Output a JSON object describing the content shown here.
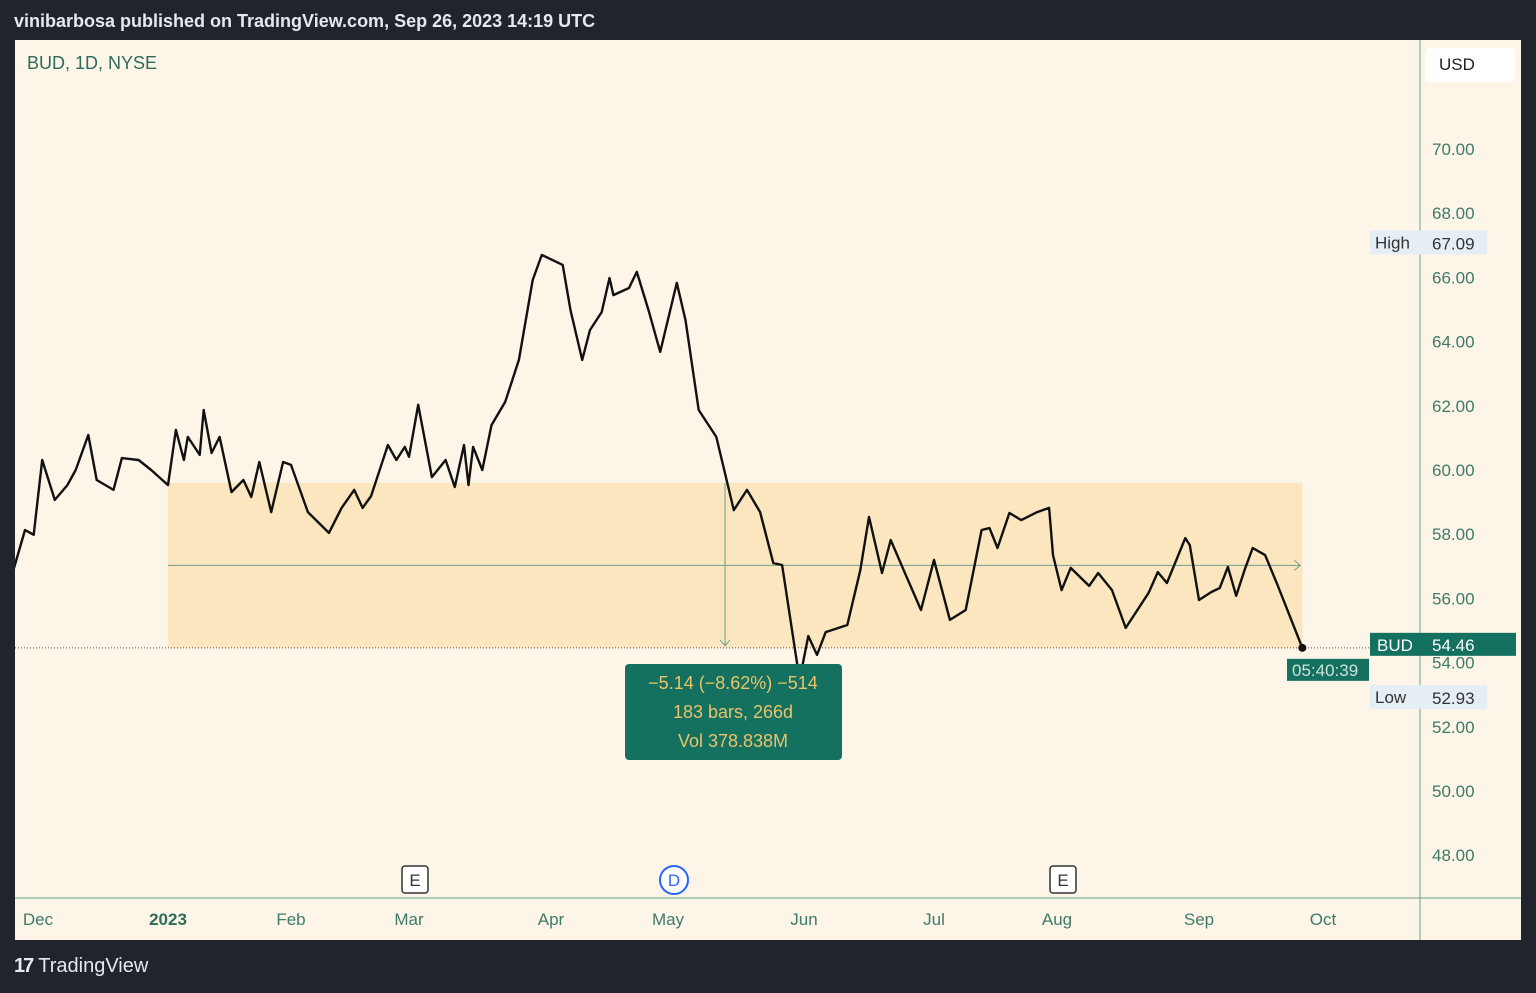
{
  "header": {
    "title": "vinibarbosa published on TradingView.com, Sep 26, 2023 14:19 UTC"
  },
  "footer": {
    "brand": "TradingView",
    "logo_icon": "tradingview-logo"
  },
  "symbol_label": "BUD, 1D, NYSE",
  "currency": "USD",
  "colors": {
    "background": "#fdf5e8",
    "line": "#111111",
    "accent": "#14705f",
    "range_fill": "#fbe6c0",
    "label_text": "#e9c46a"
  },
  "markers": [
    {
      "label": "E",
      "month": "Mar",
      "type": "earnings"
    },
    {
      "label": "D",
      "month": "May",
      "type": "dividend"
    },
    {
      "label": "E",
      "month": "Aug",
      "type": "earnings"
    }
  ],
  "price_labels": {
    "high": {
      "label": "High",
      "value": "67.09"
    },
    "current": {
      "label": "BUD",
      "value": "54.46",
      "countdown": "05:40:39"
    },
    "low": {
      "label": "Low",
      "value": "52.93"
    }
  },
  "measure": {
    "line1": "−5.14 (−8.62%) −514",
    "line2": "183 bars, 266d",
    "line3": "Vol 378.838M",
    "start_date": "2023-01-01",
    "end_date": "2023-09-26",
    "top_price": 59.6,
    "bottom_price": 54.46
  },
  "chart_data": {
    "type": "line",
    "title": "BUD, 1D, NYSE",
    "xlabel": "",
    "ylabel": "",
    "ylim": [
      46.5,
      72.5
    ],
    "y_ticks": [
      "48.00",
      "50.00",
      "52.00",
      "54.00",
      "56.00",
      "58.00",
      "60.00",
      "62.00",
      "64.00",
      "66.00",
      "68.00",
      "70.00"
    ],
    "x_ticks": [
      {
        "label": "Dec",
        "date": "2022-12-01"
      },
      {
        "label": "2023",
        "date": "2023-01-01",
        "bold": true
      },
      {
        "label": "Feb",
        "date": "2023-02-01"
      },
      {
        "label": "Mar",
        "date": "2023-03-01"
      },
      {
        "label": "Apr",
        "date": "2023-04-01"
      },
      {
        "label": "May",
        "date": "2023-05-01"
      },
      {
        "label": "Jun",
        "date": "2023-06-01"
      },
      {
        "label": "Jul",
        "date": "2023-07-01"
      },
      {
        "label": "Aug",
        "date": "2023-08-01"
      },
      {
        "label": "Sep",
        "date": "2023-09-01"
      },
      {
        "label": "Oct",
        "date": "2023-10-01"
      }
    ],
    "grid": false,
    "series": [
      {
        "points": [
          [
            "2022-11-25",
            56.73
          ],
          [
            "2022-11-28",
            58.13
          ],
          [
            "2022-11-30",
            57.98
          ],
          [
            "2022-12-02",
            60.31
          ],
          [
            "2022-12-05",
            59.07
          ],
          [
            "2022-12-08",
            59.53
          ],
          [
            "2022-12-10",
            60.0
          ],
          [
            "2022-12-13",
            61.09
          ],
          [
            "2022-12-15",
            59.69
          ],
          [
            "2022-12-19",
            59.38
          ],
          [
            "2022-12-21",
            60.37
          ],
          [
            "2022-12-25",
            60.31
          ],
          [
            "2022-12-28",
            60.0
          ],
          [
            "2023-01-01",
            59.53
          ],
          [
            "2023-01-03",
            61.25
          ],
          [
            "2023-01-05",
            60.31
          ],
          [
            "2023-01-06",
            61.03
          ],
          [
            "2023-01-09",
            60.47
          ],
          [
            "2023-01-10",
            61.87
          ],
          [
            "2023-01-12",
            60.53
          ],
          [
            "2023-01-14",
            61.03
          ],
          [
            "2023-01-17",
            59.31
          ],
          [
            "2023-01-20",
            59.69
          ],
          [
            "2023-01-22",
            59.16
          ],
          [
            "2023-01-24",
            60.25
          ],
          [
            "2023-01-27",
            58.69
          ],
          [
            "2023-01-30",
            60.25
          ],
          [
            "2023-02-01",
            60.16
          ],
          [
            "2023-02-05",
            58.69
          ],
          [
            "2023-02-10",
            58.04
          ],
          [
            "2023-02-13",
            58.82
          ],
          [
            "2023-02-16",
            59.38
          ],
          [
            "2023-02-18",
            58.82
          ],
          [
            "2023-02-20",
            59.19
          ],
          [
            "2023-02-24",
            60.78
          ],
          [
            "2023-02-26",
            60.31
          ],
          [
            "2023-02-28",
            60.72
          ],
          [
            "2023-03-01",
            60.41
          ],
          [
            "2023-03-03",
            62.03
          ],
          [
            "2023-03-06",
            59.78
          ],
          [
            "2023-03-09",
            60.31
          ],
          [
            "2023-03-11",
            59.47
          ],
          [
            "2023-03-13",
            60.78
          ],
          [
            "2023-03-14",
            59.53
          ],
          [
            "2023-03-15",
            60.72
          ],
          [
            "2023-03-17",
            60.0
          ],
          [
            "2023-03-19",
            61.4
          ],
          [
            "2023-03-22",
            62.12
          ],
          [
            "2023-03-25",
            63.43
          ],
          [
            "2023-03-28",
            65.92
          ],
          [
            "2023-03-30",
            66.7
          ],
          [
            "2023-04-04",
            66.39
          ],
          [
            "2023-04-06",
            64.98
          ],
          [
            "2023-04-09",
            63.43
          ],
          [
            "2023-04-11",
            64.36
          ],
          [
            "2023-04-14",
            64.92
          ],
          [
            "2023-04-16",
            65.98
          ],
          [
            "2023-04-17",
            65.45
          ],
          [
            "2023-04-21",
            65.67
          ],
          [
            "2023-04-23",
            66.17
          ],
          [
            "2023-04-26",
            64.98
          ],
          [
            "2023-04-29",
            63.68
          ],
          [
            "2023-05-03",
            65.83
          ],
          [
            "2023-05-05",
            64.67
          ],
          [
            "2023-05-08",
            61.87
          ],
          [
            "2023-05-12",
            61.03
          ],
          [
            "2023-05-16",
            58.75
          ],
          [
            "2023-05-19",
            59.38
          ],
          [
            "2023-05-22",
            58.69
          ],
          [
            "2023-05-25",
            57.1
          ],
          [
            "2023-05-27",
            57.04
          ],
          [
            "2023-05-31",
            53.46
          ],
          [
            "2023-06-02",
            54.83
          ],
          [
            "2023-06-04",
            54.24
          ],
          [
            "2023-06-06",
            54.95
          ],
          [
            "2023-06-11",
            55.17
          ],
          [
            "2023-06-14",
            56.88
          ],
          [
            "2023-06-16",
            58.54
          ],
          [
            "2023-06-19",
            56.79
          ],
          [
            "2023-06-21",
            57.82
          ],
          [
            "2023-06-24",
            56.88
          ],
          [
            "2023-06-28",
            55.64
          ],
          [
            "2023-07-01",
            57.2
          ],
          [
            "2023-07-05",
            55.33
          ],
          [
            "2023-07-09",
            55.64
          ],
          [
            "2023-07-13",
            58.13
          ],
          [
            "2023-07-15",
            58.19
          ],
          [
            "2023-07-17",
            57.57
          ],
          [
            "2023-07-20",
            58.66
          ],
          [
            "2023-07-23",
            58.44
          ],
          [
            "2023-07-27",
            58.69
          ],
          [
            "2023-07-30",
            58.82
          ],
          [
            "2023-07-31",
            57.35
          ],
          [
            "2023-08-02",
            56.26
          ],
          [
            "2023-08-04",
            56.95
          ],
          [
            "2023-08-08",
            56.39
          ],
          [
            "2023-08-10",
            56.79
          ],
          [
            "2023-08-13",
            56.26
          ],
          [
            "2023-08-16",
            55.08
          ],
          [
            "2023-08-21",
            56.17
          ],
          [
            "2023-08-23",
            56.82
          ],
          [
            "2023-08-25",
            56.48
          ],
          [
            "2023-08-29",
            57.88
          ],
          [
            "2023-08-30",
            57.66
          ],
          [
            "2023-09-01",
            55.95
          ],
          [
            "2023-09-04",
            56.2
          ],
          [
            "2023-09-06",
            56.32
          ],
          [
            "2023-09-08",
            56.98
          ],
          [
            "2023-09-10",
            56.08
          ],
          [
            "2023-09-12",
            56.88
          ],
          [
            "2023-09-14",
            57.57
          ],
          [
            "2023-09-17",
            57.35
          ],
          [
            "2023-09-20",
            56.42
          ],
          [
            "2023-09-26",
            54.46
          ]
        ]
      }
    ]
  }
}
